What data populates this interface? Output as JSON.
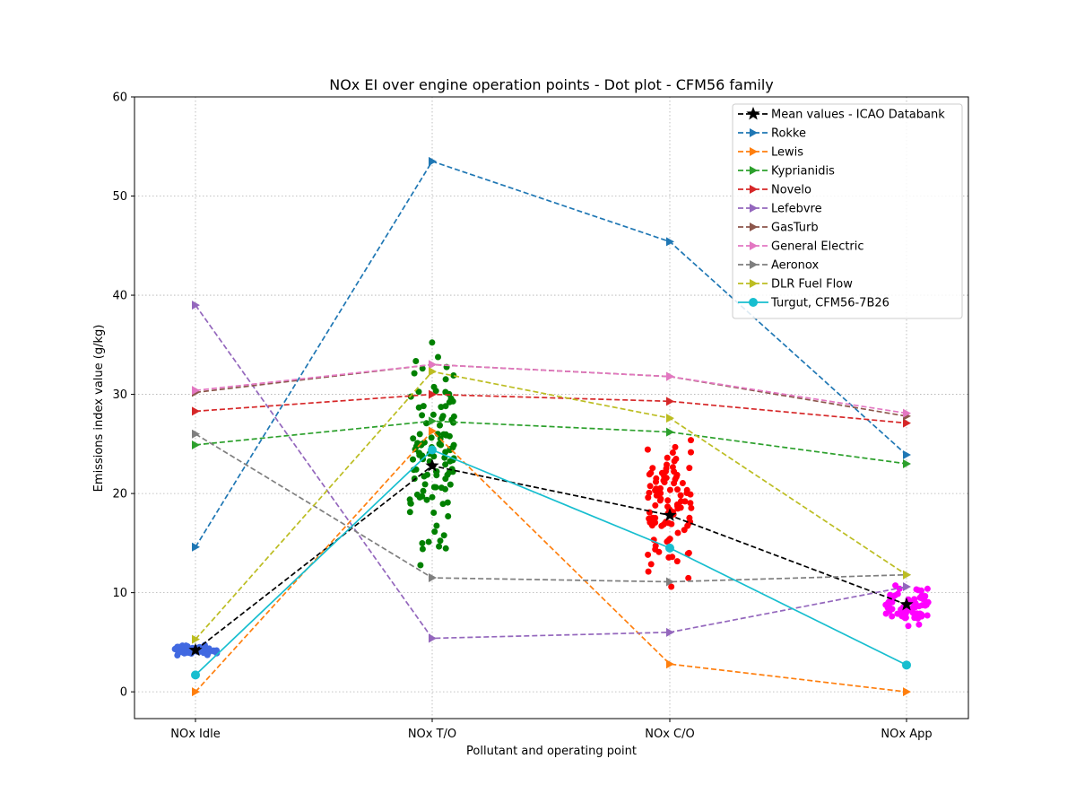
{
  "chart_data": {
    "type": "scatter",
    "title": "NOx EI over engine operation points - Dot plot - CFM56 family",
    "xlabel": "Pollutant and operating point",
    "ylabel": "Emissions index value (g/kg)",
    "categories": [
      "NOx Idle",
      "NOx T/O",
      "NOx C/O",
      "NOx App"
    ],
    "ylim": [
      -2.7,
      60
    ],
    "yticks": [
      0,
      10,
      20,
      30,
      40,
      50,
      60
    ],
    "grid": true,
    "legend_position": "top-right",
    "dot_clusters": [
      {
        "category": "NOx Idle",
        "color": "#4169e1",
        "center": 4.2,
        "spread": 0.7,
        "count": 70
      },
      {
        "category": "NOx T/O",
        "color": "#008000",
        "center": 24,
        "spread": 14,
        "count": 110
      },
      {
        "category": "NOx C/O",
        "color": "#ff0000",
        "center": 19,
        "spread": 10,
        "count": 100
      },
      {
        "category": "NOx App",
        "color": "#ff00ff",
        "center": 8.8,
        "spread": 2.5,
        "count": 70
      }
    ],
    "series": [
      {
        "name": "Mean values - ICAO Databank",
        "color": "#000000",
        "style": "dashed",
        "marker": "star",
        "values": [
          4.2,
          22.8,
          17.8,
          8.8
        ]
      },
      {
        "name": "Rokke",
        "color": "#1f77b4",
        "style": "dashed",
        "marker": "triangle-right",
        "values": [
          14.6,
          53.5,
          45.4,
          23.9
        ]
      },
      {
        "name": "Lewis",
        "color": "#ff7f0e",
        "style": "dashed",
        "marker": "triangle-right",
        "values": [
          0.0,
          26.3,
          2.8,
          0.0
        ]
      },
      {
        "name": "Kyprianidis",
        "color": "#2ca02c",
        "style": "dashed",
        "marker": "triangle-right",
        "values": [
          24.9,
          27.3,
          26.2,
          23.0
        ]
      },
      {
        "name": "Novelo",
        "color": "#d62728",
        "style": "dashed",
        "marker": "triangle-right",
        "values": [
          28.3,
          30.0,
          29.3,
          27.1
        ]
      },
      {
        "name": "Lefebvre",
        "color": "#9467bd",
        "style": "dashed",
        "marker": "triangle-right",
        "values": [
          39.0,
          5.4,
          6.0,
          10.6
        ]
      },
      {
        "name": "GasTurb",
        "color": "#8c564b",
        "style": "dashed",
        "marker": "triangle-right",
        "values": [
          30.2,
          33.0,
          31.8,
          27.8
        ]
      },
      {
        "name": "General Electric",
        "color": "#e377c2",
        "style": "dashed",
        "marker": "triangle-right",
        "values": [
          30.4,
          33.0,
          31.8,
          28.1
        ]
      },
      {
        "name": "Aeronox",
        "color": "#7f7f7f",
        "style": "dashed",
        "marker": "triangle-right",
        "values": [
          26.0,
          11.5,
          11.1,
          11.8
        ]
      },
      {
        "name": "DLR Fuel Flow",
        "color": "#bcbd22",
        "style": "dashed",
        "marker": "triangle-right",
        "values": [
          5.3,
          32.3,
          27.6,
          11.8
        ]
      },
      {
        "name": "Turgut, CFM56-7B26",
        "color": "#17becf",
        "style": "solid",
        "marker": "circle",
        "values": [
          1.7,
          24.4,
          14.5,
          2.7
        ]
      }
    ]
  }
}
